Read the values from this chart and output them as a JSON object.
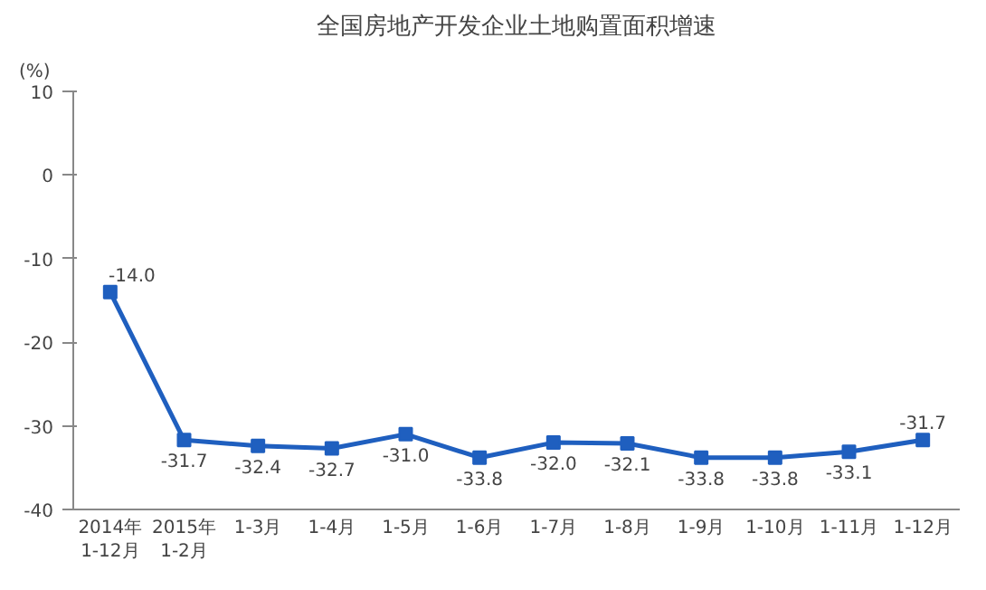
{
  "chart_data": {
    "type": "line",
    "title": "全国房地产开发企业土地购置面积增速",
    "ylabel": "(%)",
    "categories": [
      "2014年\n1-12月",
      "2015年\n1-2月",
      "1-3月",
      "1-4月",
      "1-5月",
      "1-6月",
      "1-7月",
      "1-8月",
      "1-9月",
      "1-10月",
      "1-11月",
      "1-12月"
    ],
    "series": [
      {
        "color": "#1f5fbf",
        "values": [
          -14.0,
          -31.7,
          -32.4,
          -32.7,
          -31.0,
          -33.8,
          -32.0,
          -32.1,
          -33.8,
          -33.8,
          -33.1,
          -31.7
        ],
        "value_labels": [
          "-14.0",
          "-31.7",
          "-32.4",
          "-32.7",
          "-31.0",
          "-33.8",
          "-32.0",
          "-32.1",
          "-33.8",
          "-33.8",
          "-33.1",
          "-31.7"
        ]
      }
    ],
    "ylim": [
      -40,
      10
    ],
    "yticks": [
      -40,
      -30,
      -20,
      -10,
      0,
      10
    ],
    "grid": false,
    "marker": "square",
    "line_style": "solid"
  }
}
